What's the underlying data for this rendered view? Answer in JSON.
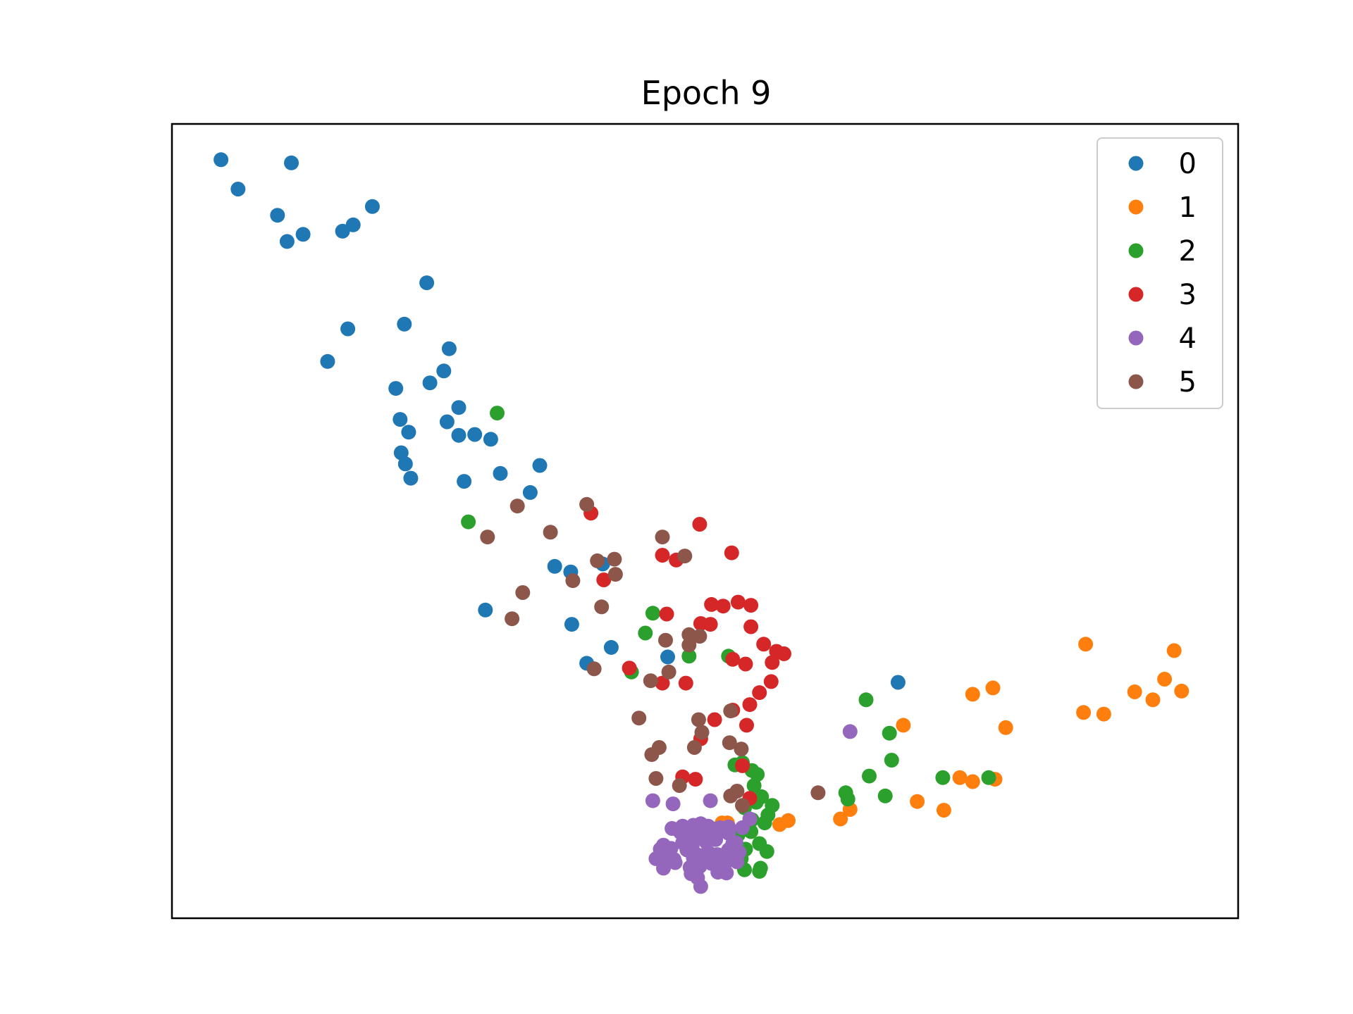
{
  "chart_data": {
    "type": "scatter",
    "title": "Epoch 9",
    "xlabel": "",
    "ylabel": "",
    "xlim": [
      0,
      100
    ],
    "ylim": [
      0,
      100
    ],
    "ticks_visible": false,
    "grid": false,
    "legend": "top-right",
    "series": [
      {
        "name": "0",
        "color": "#1f77b4",
        "points": [
          [
            4.6,
            95.5
          ],
          [
            6.2,
            91.8
          ],
          [
            11.2,
            95.1
          ],
          [
            9.9,
            88.5
          ],
          [
            10.8,
            85.2
          ],
          [
            12.3,
            86.1
          ],
          [
            16.0,
            86.5
          ],
          [
            17.0,
            87.3
          ],
          [
            18.8,
            89.6
          ],
          [
            21.0,
            66.7
          ],
          [
            14.6,
            70.1
          ],
          [
            16.5,
            74.2
          ],
          [
            23.9,
            80.0
          ],
          [
            21.8,
            74.8
          ],
          [
            26.0,
            71.7
          ],
          [
            25.5,
            68.9
          ],
          [
            24.2,
            67.4
          ],
          [
            21.4,
            62.8
          ],
          [
            22.2,
            61.2
          ],
          [
            21.5,
            58.6
          ],
          [
            21.9,
            57.2
          ],
          [
            22.4,
            55.4
          ],
          [
            26.9,
            64.3
          ],
          [
            25.8,
            62.5
          ],
          [
            26.9,
            60.8
          ],
          [
            28.4,
            60.9
          ],
          [
            29.9,
            60.3
          ],
          [
            27.4,
            55.0
          ],
          [
            30.8,
            56.0
          ],
          [
            34.5,
            57.0
          ],
          [
            33.6,
            53.6
          ],
          [
            35.9,
            44.3
          ],
          [
            37.4,
            43.6
          ],
          [
            40.4,
            44.6
          ],
          [
            29.4,
            38.8
          ],
          [
            37.5,
            37.0
          ],
          [
            41.2,
            34.1
          ],
          [
            38.9,
            32.1
          ],
          [
            46.5,
            32.9
          ],
          [
            68.1,
            29.7
          ]
        ]
      },
      {
        "name": "1",
        "color": "#ff7f0e",
        "points": [
          [
            85.7,
            34.5
          ],
          [
            94.0,
            33.7
          ],
          [
            93.1,
            30.1
          ],
          [
            90.3,
            28.5
          ],
          [
            92.0,
            27.5
          ],
          [
            94.7,
            28.6
          ],
          [
            77.0,
            29.0
          ],
          [
            75.1,
            28.2
          ],
          [
            78.2,
            24.0
          ],
          [
            68.6,
            24.3
          ],
          [
            85.5,
            25.9
          ],
          [
            87.4,
            25.7
          ],
          [
            75.1,
            17.2
          ],
          [
            77.2,
            17.5
          ],
          [
            73.9,
            17.7
          ],
          [
            72.4,
            13.6
          ],
          [
            69.9,
            14.7
          ],
          [
            63.6,
            13.7
          ],
          [
            62.7,
            12.5
          ],
          [
            57.8,
            12.3
          ],
          [
            57.0,
            11.8
          ],
          [
            52.1,
            12.0
          ],
          [
            51.6,
            12.0
          ]
        ]
      },
      {
        "name": "2",
        "color": "#2ca02c",
        "points": [
          [
            30.5,
            63.6
          ],
          [
            27.8,
            49.9
          ],
          [
            45.1,
            38.4
          ],
          [
            44.4,
            35.9
          ],
          [
            48.5,
            33.0
          ],
          [
            52.2,
            33.0
          ],
          [
            43.1,
            31.0
          ],
          [
            65.1,
            27.5
          ],
          [
            67.3,
            23.3
          ],
          [
            67.5,
            19.9
          ],
          [
            65.4,
            17.9
          ],
          [
            66.9,
            15.4
          ],
          [
            63.2,
            15.8
          ],
          [
            63.4,
            15.0
          ],
          [
            72.3,
            17.7
          ],
          [
            76.6,
            17.7
          ],
          [
            52.8,
            19.3
          ],
          [
            53.5,
            19.6
          ],
          [
            54.4,
            18.6
          ],
          [
            54.9,
            18.1
          ],
          [
            54.6,
            16.7
          ],
          [
            55.3,
            15.3
          ],
          [
            54.8,
            14.6
          ],
          [
            53.7,
            13.9
          ],
          [
            55.9,
            13.0
          ],
          [
            56.3,
            14.2
          ],
          [
            54.4,
            12.4
          ],
          [
            55.6,
            12.0
          ],
          [
            54.3,
            10.9
          ],
          [
            53.1,
            10.5
          ],
          [
            55.1,
            9.4
          ],
          [
            53.8,
            8.7
          ],
          [
            55.8,
            8.4
          ],
          [
            53.4,
            7.5
          ],
          [
            55.2,
            6.3
          ],
          [
            53.7,
            6.1
          ],
          [
            55.1,
            5.9
          ],
          [
            49.7,
            10.3
          ],
          [
            51.1,
            8.0
          ],
          [
            50.6,
            11.3
          ]
        ]
      },
      {
        "name": "3",
        "color": "#d62728",
        "points": [
          [
            39.3,
            51.0
          ],
          [
            49.5,
            49.6
          ],
          [
            46.0,
            45.7
          ],
          [
            47.3,
            45.1
          ],
          [
            52.5,
            46.0
          ],
          [
            40.5,
            42.6
          ],
          [
            46.4,
            38.3
          ],
          [
            50.6,
            39.5
          ],
          [
            51.7,
            39.3
          ],
          [
            53.1,
            39.8
          ],
          [
            54.3,
            39.4
          ],
          [
            49.6,
            37.1
          ],
          [
            50.5,
            37.0
          ],
          [
            54.3,
            36.7
          ],
          [
            55.5,
            34.5
          ],
          [
            56.7,
            33.6
          ],
          [
            57.4,
            33.3
          ],
          [
            56.3,
            32.2
          ],
          [
            52.6,
            32.6
          ],
          [
            53.8,
            32.0
          ],
          [
            42.9,
            31.5
          ],
          [
            46.0,
            29.6
          ],
          [
            48.2,
            29.6
          ],
          [
            56.2,
            29.8
          ],
          [
            55.1,
            28.4
          ],
          [
            54.2,
            26.9
          ],
          [
            52.6,
            26.2
          ],
          [
            50.9,
            25.0
          ],
          [
            53.9,
            24.3
          ],
          [
            49.6,
            22.6
          ],
          [
            53.5,
            19.2
          ],
          [
            47.9,
            17.8
          ],
          [
            49.1,
            17.5
          ],
          [
            54.2,
            15.1
          ]
        ]
      },
      {
        "name": "4",
        "color": "#9467bd",
        "points": [
          [
            63.6,
            23.5
          ],
          [
            45.1,
            14.8
          ],
          [
            47.0,
            14.4
          ],
          [
            50.5,
            14.8
          ],
          [
            54.2,
            12.5
          ],
          [
            46.9,
            11.3
          ],
          [
            47.9,
            11.6
          ],
          [
            48.9,
            11.7
          ],
          [
            49.6,
            11.9
          ],
          [
            50.3,
            11.6
          ],
          [
            51.4,
            11.4
          ],
          [
            52.2,
            11.5
          ],
          [
            53.5,
            11.4
          ],
          [
            47.7,
            10.8
          ],
          [
            48.6,
            10.5
          ],
          [
            49.5,
            10.4
          ],
          [
            50.6,
            10.8
          ],
          [
            52.2,
            10.7
          ],
          [
            47.9,
            9.5
          ],
          [
            48.8,
            9.1
          ],
          [
            50.1,
            9.6
          ],
          [
            52.6,
            9.4
          ],
          [
            45.8,
            8.7
          ],
          [
            46.8,
            8.8
          ],
          [
            48.3,
            8.6
          ],
          [
            49.1,
            8.1
          ],
          [
            50.4,
            8.2
          ],
          [
            51.2,
            8.0
          ],
          [
            52.4,
            7.9
          ],
          [
            53.2,
            8.3
          ],
          [
            45.4,
            7.5
          ],
          [
            47.1,
            7.4
          ],
          [
            48.9,
            7.6
          ],
          [
            51.4,
            7.2
          ],
          [
            52.2,
            7.3
          ],
          [
            53.0,
            7.1
          ],
          [
            46.1,
            6.3
          ],
          [
            48.6,
            6.4
          ],
          [
            49.5,
            6.5
          ],
          [
            50.6,
            6.9
          ],
          [
            48.7,
            5.6
          ],
          [
            49.3,
            5.1
          ],
          [
            52.0,
            5.7
          ],
          [
            46.4,
            7.9
          ],
          [
            47.2,
            7.0
          ],
          [
            49.7,
            7.9
          ],
          [
            50.9,
            7.7
          ],
          [
            52.2,
            8.6
          ],
          [
            48.1,
            10.2
          ],
          [
            51.0,
            9.9
          ],
          [
            49.6,
            4.0
          ],
          [
            46.1,
            9.2
          ],
          [
            51.2,
            5.8
          ],
          [
            52.9,
            9.5
          ],
          [
            49.4,
            7.3
          ]
        ]
      },
      {
        "name": "5",
        "color": "#8c564b",
        "points": [
          [
            38.9,
            52.1
          ],
          [
            32.4,
            51.9
          ],
          [
            46.0,
            48.0
          ],
          [
            35.5,
            48.6
          ],
          [
            29.6,
            48.0
          ],
          [
            41.5,
            45.2
          ],
          [
            39.9,
            45.0
          ],
          [
            48.1,
            45.6
          ],
          [
            41.6,
            43.3
          ],
          [
            37.6,
            42.5
          ],
          [
            32.9,
            41.0
          ],
          [
            40.3,
            39.2
          ],
          [
            31.9,
            37.7
          ],
          [
            48.5,
            35.7
          ],
          [
            49.5,
            35.5
          ],
          [
            46.3,
            35.0
          ],
          [
            48.5,
            34.4
          ],
          [
            39.6,
            31.4
          ],
          [
            46.6,
            31.0
          ],
          [
            44.9,
            29.9
          ],
          [
            52.4,
            26.1
          ],
          [
            49.4,
            25.0
          ],
          [
            49.7,
            23.4
          ],
          [
            43.8,
            25.2
          ],
          [
            52.3,
            22.1
          ],
          [
            49.0,
            21.5
          ],
          [
            45.7,
            21.5
          ],
          [
            45.0,
            20.6
          ],
          [
            53.4,
            21.3
          ],
          [
            45.4,
            17.6
          ],
          [
            47.6,
            16.7
          ],
          [
            53.0,
            16.0
          ],
          [
            53.5,
            14.2
          ],
          [
            60.6,
            15.8
          ],
          [
            52.4,
            15.4
          ]
        ]
      }
    ]
  }
}
